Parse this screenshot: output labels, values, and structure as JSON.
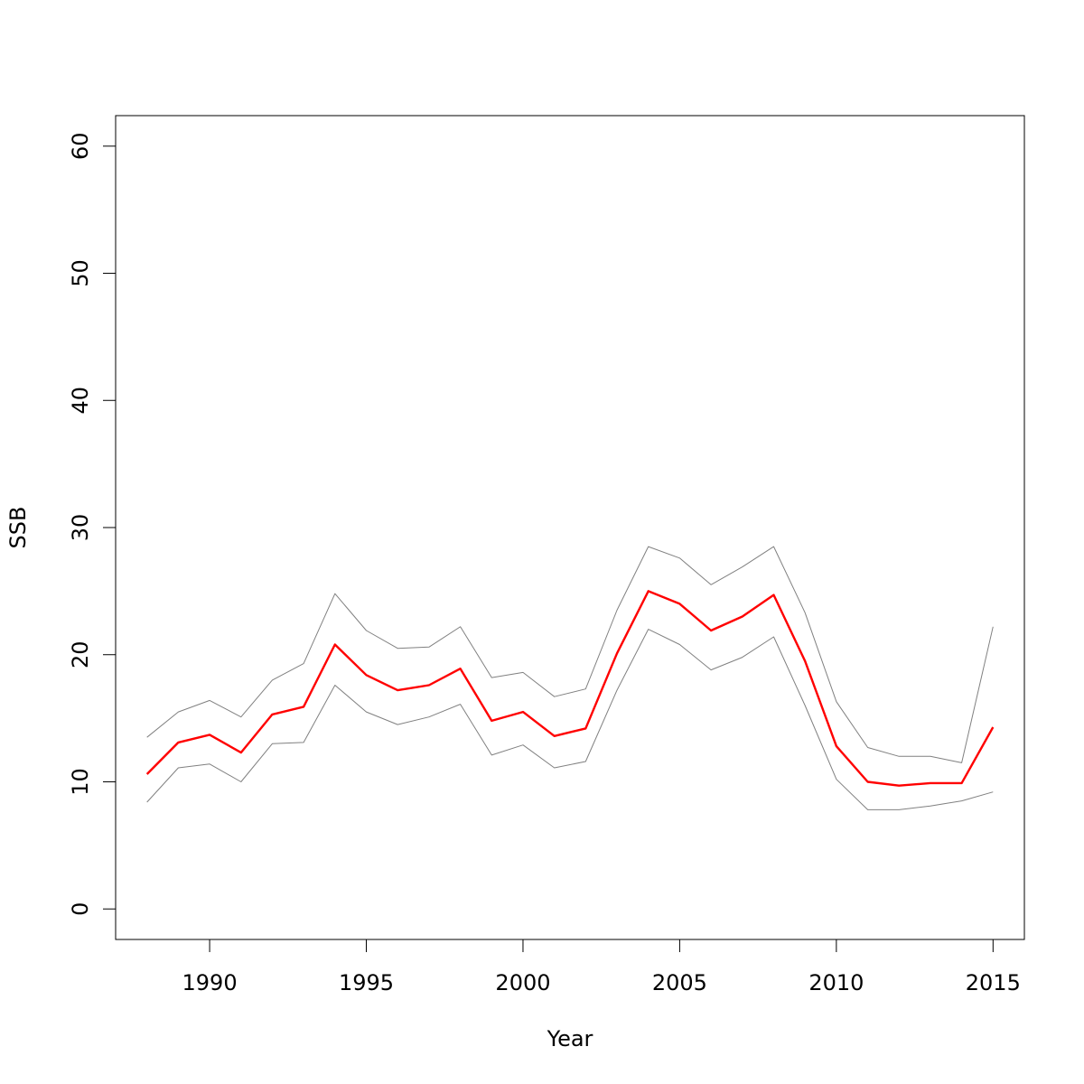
{
  "chart_data": {
    "type": "line",
    "title": "",
    "xlabel": "Year",
    "ylabel": "SSB",
    "xlim": [
      1987,
      2016
    ],
    "ylim": [
      -2.4,
      62.4
    ],
    "grid": false,
    "legend": "none",
    "x_ticks": [
      1990,
      1995,
      2000,
      2005,
      2010,
      2015
    ],
    "x_tick_labels": [
      "1990",
      "1995",
      "2000",
      "2005",
      "2010",
      "2015"
    ],
    "y_ticks": [
      0,
      10,
      20,
      30,
      40,
      50,
      60
    ],
    "y_tick_labels": [
      "0",
      "10",
      "20",
      "30",
      "40",
      "50",
      "60"
    ],
    "x": [
      1988,
      1989,
      1990,
      1991,
      1992,
      1993,
      1994,
      1995,
      1996,
      1997,
      1998,
      1999,
      2000,
      2001,
      2002,
      2003,
      2004,
      2005,
      2006,
      2007,
      2008,
      2009,
      2010,
      2011,
      2012,
      2013,
      2014,
      2015
    ],
    "series": [
      {
        "color": "#ff0000",
        "values": [
          10.6,
          13.1,
          13.7,
          12.3,
          15.3,
          15.9,
          20.8,
          18.4,
          17.2,
          17.6,
          18.9,
          14.8,
          15.5,
          13.6,
          14.2,
          20.1,
          25.0,
          24.0,
          21.9,
          23.0,
          24.7,
          19.5,
          12.8,
          10.0,
          9.7,
          9.9,
          9.9,
          14.3
        ]
      },
      {
        "color": "#808080",
        "values": [
          13.5,
          15.5,
          16.4,
          15.1,
          18.0,
          19.3,
          24.8,
          21.9,
          20.5,
          20.6,
          22.2,
          18.2,
          18.6,
          16.7,
          17.3,
          23.5,
          28.5,
          27.6,
          25.5,
          26.9,
          28.5,
          23.3,
          16.3,
          12.7,
          12.0,
          12.0,
          11.5,
          22.2
        ]
      },
      {
        "color": "#808080",
        "values": [
          8.4,
          11.1,
          11.4,
          10.0,
          13.0,
          13.1,
          17.6,
          15.5,
          14.5,
          15.1,
          16.1,
          12.1,
          12.9,
          11.1,
          11.6,
          17.2,
          22.0,
          20.8,
          18.8,
          19.8,
          21.4,
          16.0,
          10.2,
          7.8,
          7.8,
          8.1,
          8.5,
          9.2
        ]
      }
    ]
  }
}
